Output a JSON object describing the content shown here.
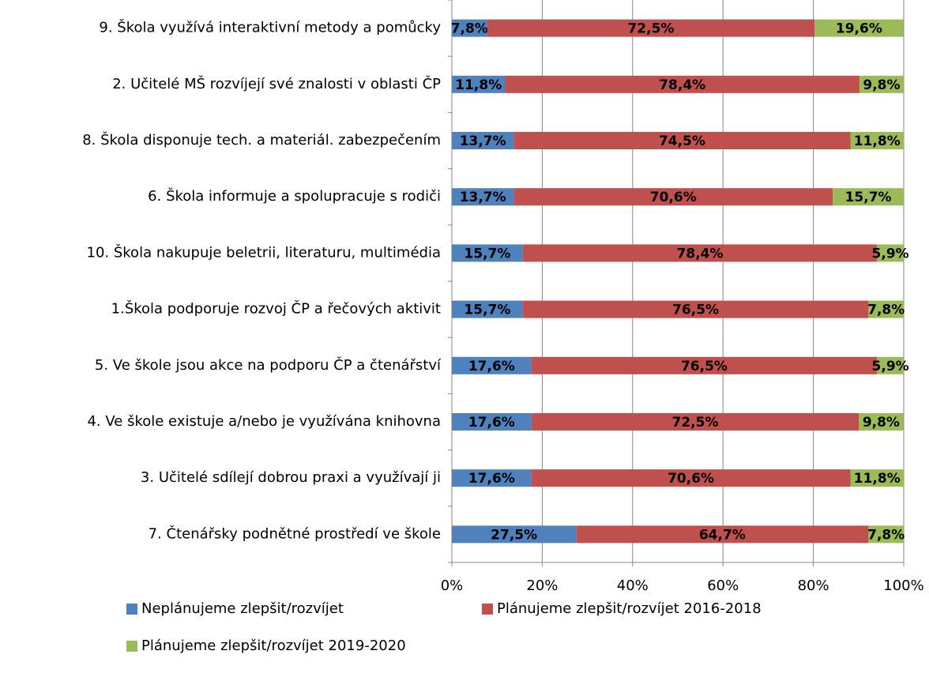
{
  "chart_data": {
    "type": "stacked_bar_horizontal",
    "categories": [
      "9. Škola využívá interaktivní metody a pomůcky",
      "2. Učitelé MŠ rozvíjejí své znalosti v oblasti ČP",
      "8. Škola disponuje tech. a materiál. zabezpečením",
      "6. Škola informuje a spolupracuje s rodiči",
      "10. Škola nakupuje beletrii, literaturu, multimédia",
      "1.Škola podporuje rozvoj ČP a řečových aktivit",
      "5. Ve škole jsou akce na podporu ČP a čtenářství",
      "4. Ve škole existuje a/nebo je využívána knihovna",
      "3. Učitelé sdílejí dobrou praxi a využívají ji",
      "7. Čtenářsky podnětné prostředí ve škole"
    ],
    "series": [
      {
        "name": "Neplánujeme zlepšit/rozvíjet",
        "color": "#4f81bd",
        "values": [
          7.8,
          11.8,
          13.7,
          13.7,
          15.7,
          15.7,
          17.6,
          17.6,
          17.6,
          27.5
        ],
        "value_labels": [
          "7,8%",
          "11,8%",
          "13,7%",
          "13,7%",
          "15,7%",
          "15,7%",
          "17,6%",
          "17,6%",
          "17,6%",
          "27,5%"
        ]
      },
      {
        "name": "Plánujeme zlepšit/rozvíjet 2016-2018",
        "color": "#c0504d",
        "values": [
          72.5,
          78.4,
          74.5,
          70.6,
          78.4,
          76.5,
          76.5,
          72.5,
          70.6,
          64.7
        ],
        "value_labels": [
          "72,5%",
          "78,4%",
          "74,5%",
          "70,6%",
          "78,4%",
          "76,5%",
          "76,5%",
          "72,5%",
          "70,6%",
          "64,7%"
        ]
      },
      {
        "name": "Plánujeme zlepšit/rozvíjet 2019-2020",
        "color": "#9bbb59",
        "values": [
          19.6,
          9.8,
          11.8,
          15.7,
          5.9,
          7.8,
          5.9,
          9.8,
          11.8,
          7.8
        ],
        "value_labels": [
          "19,6%",
          "9,8%",
          "11,8%",
          "15,7%",
          "5,9%",
          "7,8%",
          "5,9%",
          "9,8%",
          "11,8%",
          "7,8%"
        ]
      }
    ],
    "xlim": [
      0,
      100
    ],
    "xticks": [
      {
        "value": 0,
        "label": "0%"
      },
      {
        "value": 20,
        "label": "20%"
      },
      {
        "value": 40,
        "label": "40%"
      },
      {
        "value": 60,
        "label": "60%"
      },
      {
        "value": 80,
        "label": "80%"
      },
      {
        "value": 100,
        "label": "100%"
      }
    ],
    "grid": true
  }
}
